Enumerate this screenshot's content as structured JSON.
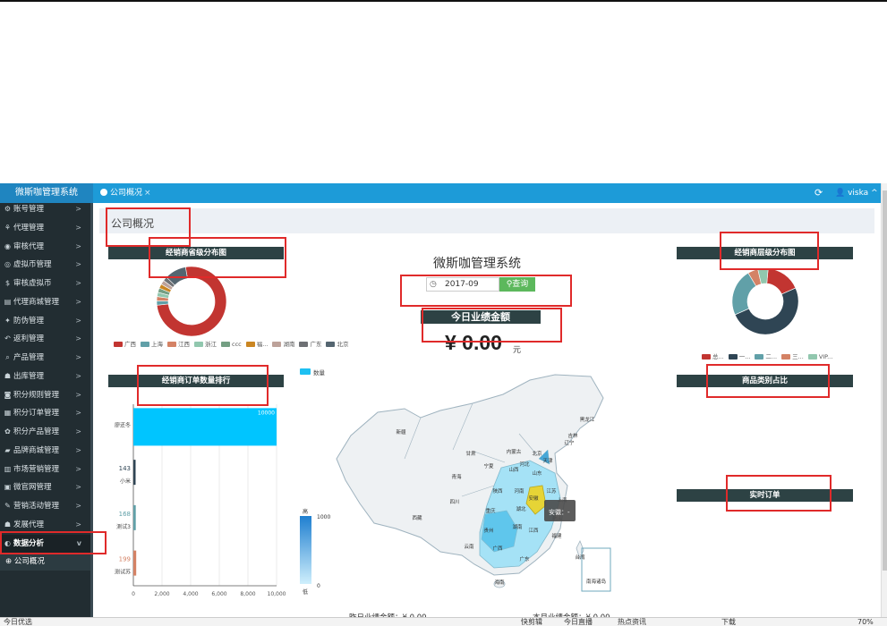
{
  "app": {
    "brand": "微斯咖管理系统",
    "open_tab": "公司概况",
    "tab_close": "×",
    "user": "viska",
    "user_caret": "^"
  },
  "sidebar": {
    "items": [
      {
        "icon": "⚙",
        "label": "账号管理"
      },
      {
        "icon": "⚘",
        "label": "代理管理"
      },
      {
        "icon": "◉",
        "label": "审核代理"
      },
      {
        "icon": "◎",
        "label": "虚拟币管理"
      },
      {
        "icon": "$",
        "label": "审核虚拟币"
      },
      {
        "icon": "▤",
        "label": "代理商城管理"
      },
      {
        "icon": "✦",
        "label": "防伪管理"
      },
      {
        "icon": "↶",
        "label": "返利管理"
      },
      {
        "icon": "⌕",
        "label": "产品管理"
      },
      {
        "icon": "☗",
        "label": "出库管理"
      },
      {
        "icon": "◙",
        "label": "积分规则管理"
      },
      {
        "icon": "▦",
        "label": "积分订单管理"
      },
      {
        "icon": "✿",
        "label": "积分产品管理"
      },
      {
        "icon": "▰",
        "label": "品牌商城管理"
      },
      {
        "icon": "▥",
        "label": "市场营销管理"
      },
      {
        "icon": "▣",
        "label": "微官网管理"
      },
      {
        "icon": "✎",
        "label": "营销活动管理"
      },
      {
        "icon": "☗",
        "label": "发展代理"
      },
      {
        "icon": "◐",
        "label": "数据分析"
      }
    ],
    "chevron": ">",
    "expanded_chevron": "v",
    "sub_items": [
      {
        "icon": "⊕",
        "label": "公司概况"
      }
    ]
  },
  "page": {
    "title": "公司概况",
    "system_name": "微斯咖管理系统",
    "date_value": "2017-09",
    "query_button": "查询",
    "today_label": "今日业绩金额",
    "today_amount": "¥ 0.00",
    "amount_unit": "元",
    "yesterday_label": "昨日业绩金额：¥ 0.00",
    "month_label": "本月业绩金额：¥ 0.00"
  },
  "sections": {
    "province": "经销商省级分布图",
    "level": "经销商层级分布图",
    "order_rank": "经销商订单数量排行",
    "category": "商品类别占比",
    "live_orders": "实时订单"
  },
  "colors": {
    "red_annotation": "#e02a2a",
    "section_bar": "#2d4244",
    "accent": "#1d9bd8"
  },
  "chart_data": [
    {
      "type": "pie",
      "title": "经销商省级分布图",
      "labels": [
        "广西",
        "上海",
        "江西",
        "浙江",
        "ccc",
        "福...",
        "湖南",
        "广东",
        "北京"
      ],
      "values": [
        76,
        2,
        2,
        2,
        2,
        2,
        2,
        2,
        10
      ],
      "colors": [
        "#c23531",
        "#61a0a8",
        "#d48265",
        "#91c7ae",
        "#749f83",
        "#ca8622",
        "#bda29a",
        "#6e7074",
        "#546570"
      ]
    },
    {
      "type": "pie",
      "title": "经销商层级分布图",
      "labels": [
        "总...",
        "一...",
        "二...",
        "三...",
        "VIP..."
      ],
      "values": [
        17,
        50,
        23,
        5,
        5
      ],
      "colors": [
        "#c23531",
        "#2f4554",
        "#61a0a8",
        "#d48265",
        "#91c7ae"
      ]
    },
    {
      "type": "bar",
      "title": "经销商订单数量排行",
      "orientation": "horizontal",
      "categories": [
        "廖还冬",
        "小米",
        "测试3",
        "测试苏"
      ],
      "values": [
        10000,
        143,
        168,
        199
      ],
      "value_labels": [
        "10000",
        "143",
        "168",
        "199"
      ],
      "xlim": [
        0,
        10000
      ],
      "xticks": [
        "0",
        "2,000",
        "4,000",
        "6,000",
        "8,000",
        "10,000"
      ],
      "colors": [
        "#00c5ff",
        "#2f4554",
        "#61a0a8",
        "#d48265"
      ]
    },
    {
      "type": "map",
      "legend": "数量",
      "visual_map": {
        "max": "1000",
        "max_label": "高",
        "min": "0",
        "min_label": "低"
      },
      "region_labels": [
        "新疆",
        "西藏",
        "青海",
        "甘肃",
        "内蒙古",
        "黑龙江",
        "吉林",
        "辽宁",
        "北京",
        "天津",
        "河北",
        "山西",
        "山东",
        "河南",
        "陕西",
        "宁夏",
        "四川",
        "重庆",
        "湖北",
        "安徽",
        "江苏",
        "上海",
        "浙江",
        "湖南",
        "江西",
        "福建",
        "贵州",
        "云南",
        "广西",
        "广东",
        "海南",
        "台湾",
        "南海诸岛"
      ],
      "tooltip": "安徽：-"
    }
  ],
  "taskbar": {
    "items": [
      "今日优选",
      "快剪辑",
      "今日直播",
      "热点资讯",
      "下载",
      "70%"
    ]
  }
}
